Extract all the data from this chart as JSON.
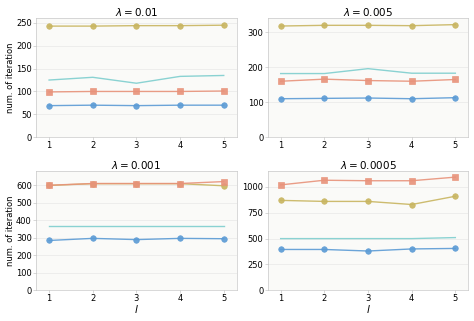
{
  "titles": [
    "$\\lambda = 0.01$",
    "$\\lambda = 0.005$",
    "$\\lambda = 0.001$",
    "$\\lambda = 0.0005$"
  ],
  "xlabel": "$l$",
  "ylabel": "num. of iteration",
  "x": [
    1,
    2,
    3,
    4,
    5
  ],
  "series": [
    {
      "subplot": 0,
      "lines": [
        {
          "y": [
            243,
            243,
            244,
            244,
            245
          ],
          "color": "#c8b560",
          "marker": "o",
          "markersize": 4,
          "linewidth": 1.0
        },
        {
          "y": [
            99,
            100,
            100,
            100,
            101
          ],
          "color": "#e8927a",
          "marker": "s",
          "markersize": 4,
          "linewidth": 1.0
        },
        {
          "y": [
            125,
            131,
            118,
            133,
            135
          ],
          "color": "#7ecece",
          "marker": null,
          "linewidth": 1.0
        },
        {
          "y": [
            69,
            70,
            69,
            70,
            70
          ],
          "color": "#5b9bd5",
          "marker": "o",
          "markersize": 4,
          "linewidth": 1.0
        }
      ],
      "ylim": [
        0,
        260
      ],
      "yticks": [
        0,
        50,
        100,
        150,
        200,
        250
      ]
    },
    {
      "subplot": 1,
      "lines": [
        {
          "y": [
            318,
            320,
            320,
            319,
            322
          ],
          "color": "#c8b560",
          "marker": "o",
          "markersize": 4,
          "linewidth": 1.0
        },
        {
          "y": [
            160,
            166,
            162,
            160,
            165
          ],
          "color": "#e8927a",
          "marker": "s",
          "markersize": 4,
          "linewidth": 1.0
        },
        {
          "y": [
            182,
            182,
            196,
            183,
            183
          ],
          "color": "#7ecece",
          "marker": null,
          "linewidth": 1.0
        },
        {
          "y": [
            110,
            111,
            112,
            110,
            113
          ],
          "color": "#5b9bd5",
          "marker": "o",
          "markersize": 4,
          "linewidth": 1.0
        }
      ],
      "ylim": [
        0,
        340
      ],
      "yticks": [
        0,
        100,
        200,
        300
      ]
    },
    {
      "subplot": 2,
      "lines": [
        {
          "y": [
            600,
            610,
            610,
            610,
            598
          ],
          "color": "#c8b560",
          "marker": "o",
          "markersize": 4,
          "linewidth": 1.0
        },
        {
          "y": [
            601,
            611,
            611,
            611,
            622
          ],
          "color": "#e8927a",
          "marker": "s",
          "markersize": 4,
          "linewidth": 1.0
        },
        {
          "y": [
            365,
            365,
            365,
            365,
            365
          ],
          "color": "#7ecece",
          "marker": null,
          "linewidth": 1.0
        },
        {
          "y": [
            285,
            297,
            290,
            297,
            295
          ],
          "color": "#5b9bd5",
          "marker": "o",
          "markersize": 4,
          "linewidth": 1.0
        }
      ],
      "ylim": [
        0,
        680
      ],
      "yticks": [
        0,
        100,
        200,
        300,
        400,
        500,
        600
      ]
    },
    {
      "subplot": 3,
      "lines": [
        {
          "y": [
            1020,
            1065,
            1060,
            1060,
            1095
          ],
          "color": "#e8927a",
          "marker": "s",
          "markersize": 4,
          "linewidth": 1.0
        },
        {
          "y": [
            870,
            860,
            860,
            830,
            910
          ],
          "color": "#c8b560",
          "marker": "o",
          "markersize": 4,
          "linewidth": 1.0
        },
        {
          "y": [
            500,
            500,
            500,
            500,
            510
          ],
          "color": "#7ecece",
          "marker": null,
          "linewidth": 1.0
        },
        {
          "y": [
            395,
            395,
            380,
            400,
            405
          ],
          "color": "#5b9bd5",
          "marker": "o",
          "markersize": 4,
          "linewidth": 1.0
        }
      ],
      "ylim": [
        0,
        1150
      ],
      "yticks": [
        0,
        250,
        500,
        750,
        1000
      ]
    }
  ],
  "figsize": [
    4.74,
    3.21
  ],
  "dpi": 100,
  "bg_color": "#f5f5f0"
}
